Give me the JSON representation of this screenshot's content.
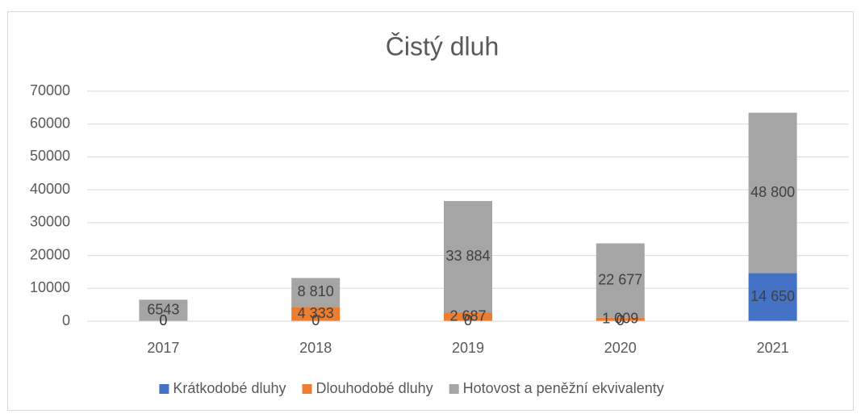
{
  "chart_data": {
    "type": "stacked_bar",
    "title": "Čistý dluh",
    "categories": [
      "2017",
      "2018",
      "2019",
      "2020",
      "2021"
    ],
    "series": [
      {
        "name": "Krátkodobé dluhy",
        "color": "#4472c4",
        "values": [
          0,
          0,
          0,
          0,
          14650
        ],
        "value_labels": [
          "0",
          "0",
          "0",
          "0",
          "14 650"
        ]
      },
      {
        "name": "Dlouhodobé dluhy",
        "color": "#ed7d31",
        "values": [
          0,
          4333,
          2687,
          1009,
          0
        ],
        "value_labels": [
          "0",
          "4 333",
          "2 687",
          "1 009",
          null
        ]
      },
      {
        "name": "Hotovost a peněžní ekvivalenty",
        "color": "#a5a5a5",
        "values": [
          6543,
          8810,
          33884,
          22677,
          48800
        ],
        "value_labels": [
          "6543",
          "8 810",
          "33 884",
          "22 677",
          "48 800"
        ]
      }
    ],
    "ylim": [
      0,
      70000
    ],
    "yticks": [
      0,
      10000,
      20000,
      30000,
      40000,
      50000,
      60000,
      70000
    ],
    "grid": true,
    "legend": "bottom"
  }
}
